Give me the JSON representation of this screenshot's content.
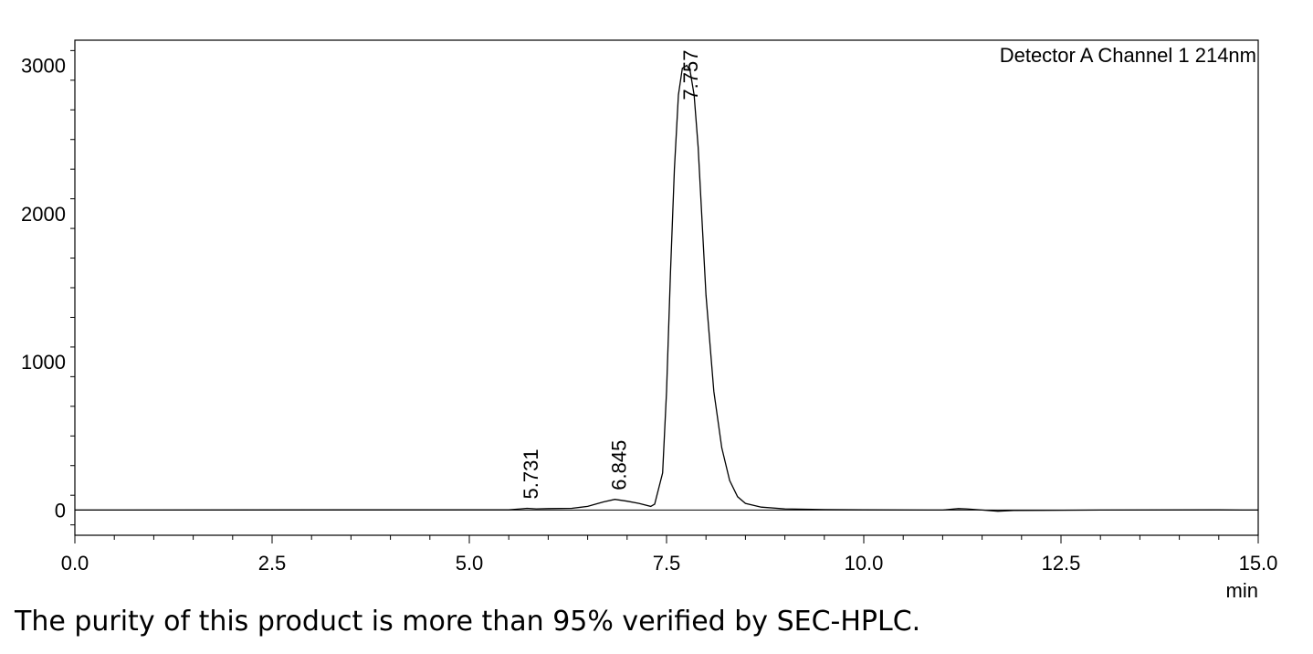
{
  "chart_data": {
    "type": "line",
    "legend": "Detector A Channel 1 214nm",
    "xlabel": "min",
    "ylabel": "",
    "xlim": [
      0.0,
      15.0
    ],
    "ylim": [
      -170,
      3170
    ],
    "x_ticks": [
      "0.0",
      "2.5",
      "5.0",
      "7.5",
      "10.0",
      "12.5",
      "15.0"
    ],
    "y_ticks": [
      "0",
      "1000",
      "2000",
      "3000"
    ],
    "peak_labels": [
      "5.731",
      "6.845",
      "7.757"
    ],
    "peaks": [
      {
        "label": "5.731",
        "x": 5.731,
        "y": 12
      },
      {
        "label": "6.845",
        "x": 6.845,
        "y": 72
      },
      {
        "label": "7.757",
        "x": 7.757,
        "y": 3000
      }
    ],
    "series": [
      {
        "x": [
          0.0,
          5.5,
          5.65,
          5.731,
          5.85,
          6.0,
          6.3,
          6.5,
          6.7,
          6.845,
          7.0,
          7.15,
          7.3,
          7.35,
          7.45,
          7.5,
          7.55,
          7.6,
          7.65,
          7.7,
          7.757,
          7.8,
          7.85,
          7.9,
          7.95,
          8.0,
          8.1,
          8.2,
          8.3,
          8.4,
          8.5,
          8.7,
          9.0,
          9.5,
          10.0,
          11.0,
          11.2,
          11.3,
          11.5,
          11.7,
          11.9,
          13.0,
          14.5,
          14.8,
          15.0
        ],
        "y": [
          0,
          2,
          8,
          12,
          8,
          10,
          12,
          25,
          55,
          72,
          60,
          45,
          25,
          40,
          250,
          800,
          1600,
          2300,
          2800,
          2980,
          3000,
          2960,
          2800,
          2450,
          1950,
          1450,
          800,
          420,
          200,
          90,
          45,
          20,
          8,
          3,
          2,
          0,
          10,
          8,
          0,
          -8,
          -3,
          0,
          2,
          0,
          0
        ]
      }
    ]
  },
  "footer": {
    "caption": "The purity of this product is more than 95% verified by SEC-HPLC."
  }
}
